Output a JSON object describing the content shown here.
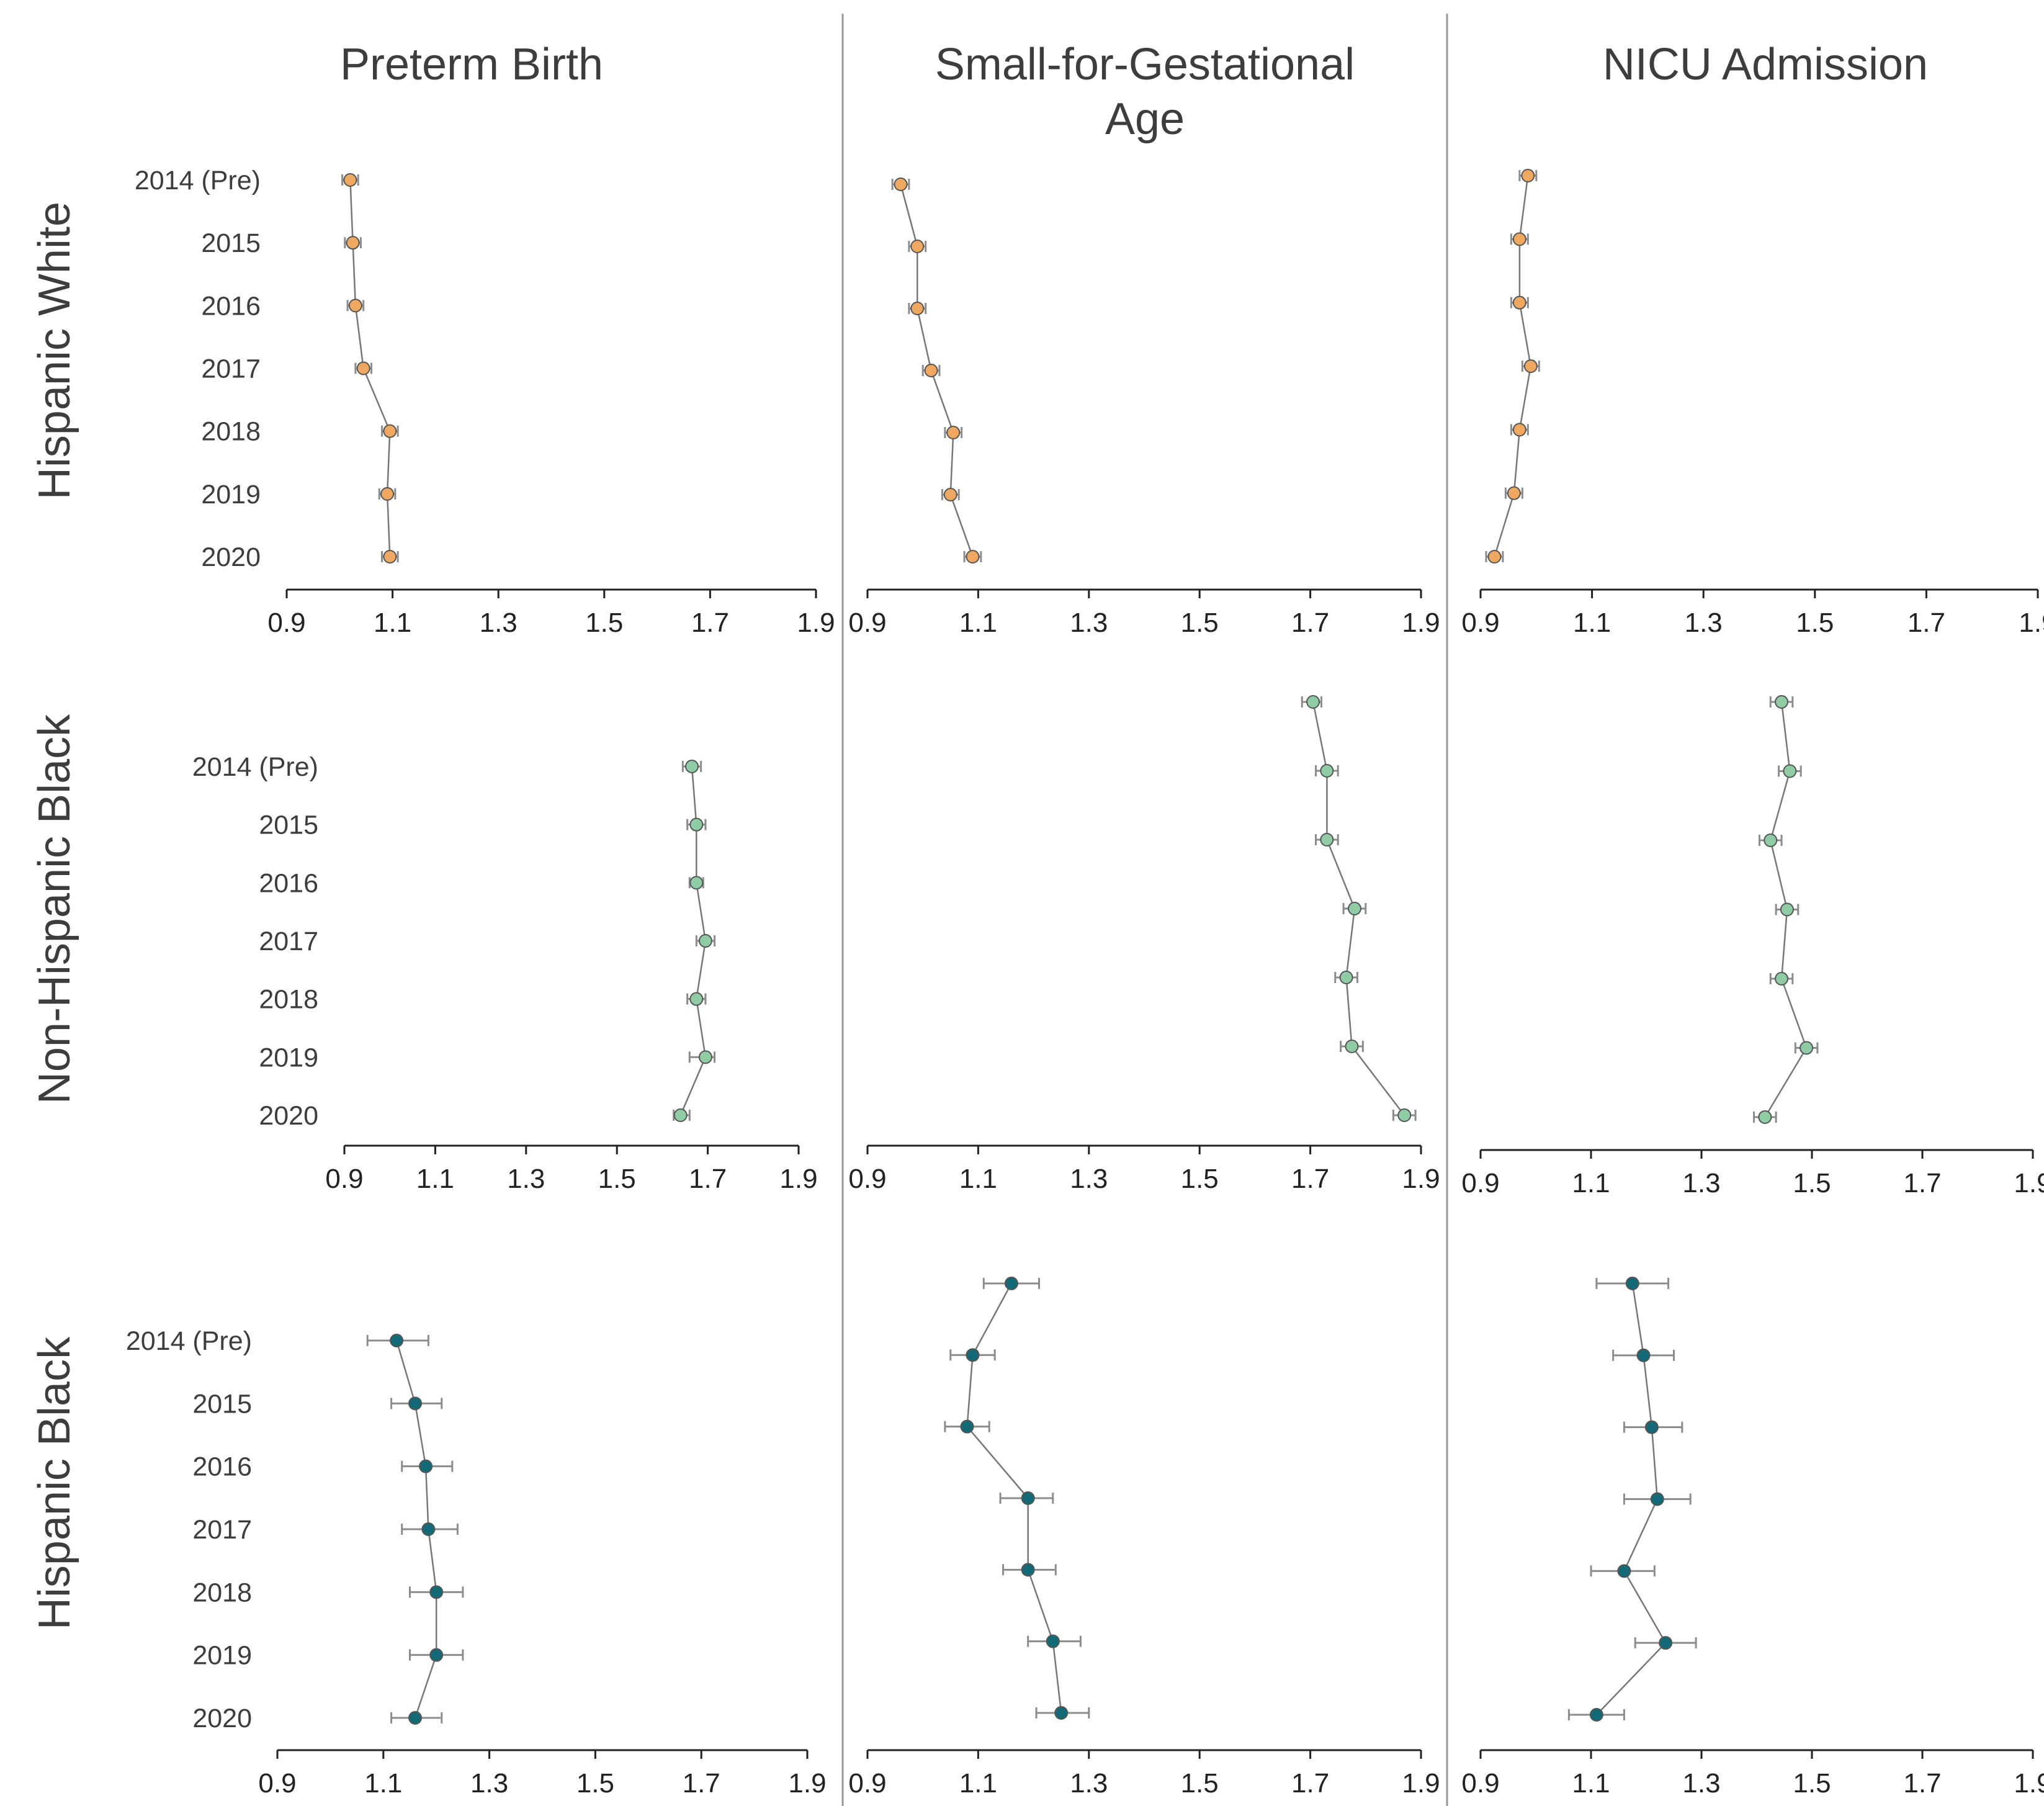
{
  "chart_data": {
    "type": "scatter",
    "layout": "3x3 forest-plot grid",
    "colors": {
      "Hispanic White": "#efa861",
      "Non-Hispanic Black": "#8fcca3",
      "Hispanic Black": "#136a76",
      "connector": "#777777",
      "error_bar": "#8c8c8c",
      "separator": "#999999",
      "axis": "#222222"
    },
    "column_titles": [
      "Preterm Birth",
      [
        "Small-for-Gestational",
        "Age"
      ],
      "NICU Admission"
    ],
    "row_titles": [
      "Hispanic White",
      "Non-Hispanic Black",
      "Hispanic Black"
    ],
    "years": [
      "2014 (Pre)",
      "2015",
      "2016",
      "2017",
      "2018",
      "2019",
      "2020"
    ],
    "xlim": [
      0.9,
      1.9
    ],
    "xticks": [
      "0.9",
      "1.1",
      "1.3",
      "1.5",
      "1.7",
      "1.9"
    ],
    "panels": [
      {
        "row": "Hispanic White",
        "col": "Preterm Birth",
        "show_years": true,
        "values": [
          1.02,
          1.025,
          1.03,
          1.045,
          1.095,
          1.09,
          1.095
        ],
        "ci": [
          [
            1.005,
            1.035
          ],
          [
            1.01,
            1.04
          ],
          [
            1.015,
            1.045
          ],
          [
            1.03,
            1.06
          ],
          [
            1.08,
            1.11
          ],
          [
            1.075,
            1.105
          ],
          [
            1.08,
            1.11
          ]
        ]
      },
      {
        "row": "Hispanic White",
        "col": "Small-for-Gestational Age",
        "show_years": false,
        "values": [
          0.96,
          0.99,
          0.99,
          1.015,
          1.055,
          1.05,
          1.09
        ],
        "ci": [
          [
            0.945,
            0.975
          ],
          [
            0.975,
            1.005
          ],
          [
            0.975,
            1.005
          ],
          [
            1.0,
            1.03
          ],
          [
            1.04,
            1.07
          ],
          [
            1.035,
            1.065
          ],
          [
            1.075,
            1.105
          ]
        ]
      },
      {
        "row": "Hispanic White",
        "col": "NICU Admission",
        "show_years": false,
        "values": [
          0.985,
          0.97,
          0.97,
          0.99,
          0.97,
          0.96,
          0.925
        ],
        "ci": [
          [
            0.97,
            1.0
          ],
          [
            0.955,
            0.985
          ],
          [
            0.955,
            0.985
          ],
          [
            0.975,
            1.005
          ],
          [
            0.955,
            0.985
          ],
          [
            0.945,
            0.975
          ],
          [
            0.91,
            0.94
          ]
        ]
      },
      {
        "row": "Non-Hispanic Black",
        "col": "Preterm Birth",
        "show_years": true,
        "values": [
          1.665,
          1.675,
          1.675,
          1.695,
          1.675,
          1.695,
          1.64
        ],
        "ci": [
          [
            1.645,
            1.685
          ],
          [
            1.655,
            1.695
          ],
          [
            1.66,
            1.69
          ],
          [
            1.675,
            1.715
          ],
          [
            1.655,
            1.695
          ],
          [
            1.66,
            1.715
          ],
          [
            1.625,
            1.66
          ]
        ]
      },
      {
        "row": "Non-Hispanic Black",
        "col": "Small-for-Gestational Age",
        "show_years": false,
        "values": [
          1.705,
          1.73,
          1.73,
          1.78,
          1.765,
          1.775,
          1.87
        ],
        "ci": [
          [
            1.685,
            1.72
          ],
          [
            1.71,
            1.75
          ],
          [
            1.71,
            1.75
          ],
          [
            1.76,
            1.8
          ],
          [
            1.745,
            1.785
          ],
          [
            1.755,
            1.795
          ],
          [
            1.85,
            1.89
          ]
        ]
      },
      {
        "row": "Non-Hispanic Black",
        "col": "NICU Admission",
        "show_years": false,
        "values": [
          1.445,
          1.46,
          1.425,
          1.455,
          1.445,
          1.49,
          1.415
        ],
        "ci": [
          [
            1.425,
            1.465
          ],
          [
            1.44,
            1.48
          ],
          [
            1.405,
            1.445
          ],
          [
            1.435,
            1.475
          ],
          [
            1.425,
            1.465
          ],
          [
            1.47,
            1.51
          ],
          [
            1.395,
            1.435
          ]
        ]
      },
      {
        "row": "Hispanic Black",
        "col": "Preterm Birth",
        "show_years": true,
        "values": [
          1.125,
          1.16,
          1.18,
          1.185,
          1.2,
          1.2,
          1.16
        ],
        "ci": [
          [
            1.07,
            1.185
          ],
          [
            1.115,
            1.21
          ],
          [
            1.135,
            1.23
          ],
          [
            1.135,
            1.24
          ],
          [
            1.15,
            1.25
          ],
          [
            1.15,
            1.25
          ],
          [
            1.115,
            1.21
          ]
        ]
      },
      {
        "row": "Hispanic Black",
        "col": "Small-for-Gestational Age",
        "show_years": false,
        "values": [
          1.16,
          1.09,
          1.08,
          1.19,
          1.19,
          1.235,
          1.25
        ],
        "ci": [
          [
            1.11,
            1.21
          ],
          [
            1.05,
            1.13
          ],
          [
            1.04,
            1.12
          ],
          [
            1.14,
            1.235
          ],
          [
            1.145,
            1.24
          ],
          [
            1.19,
            1.285
          ],
          [
            1.205,
            1.3
          ]
        ]
      },
      {
        "row": "Hispanic Black",
        "col": "NICU Admission",
        "show_years": false,
        "values": [
          1.175,
          1.195,
          1.21,
          1.22,
          1.16,
          1.235,
          1.11
        ],
        "ci": [
          [
            1.11,
            1.24
          ],
          [
            1.14,
            1.25
          ],
          [
            1.16,
            1.265
          ],
          [
            1.16,
            1.28
          ],
          [
            1.1,
            1.215
          ],
          [
            1.18,
            1.29
          ],
          [
            1.06,
            1.16
          ]
        ]
      }
    ]
  }
}
